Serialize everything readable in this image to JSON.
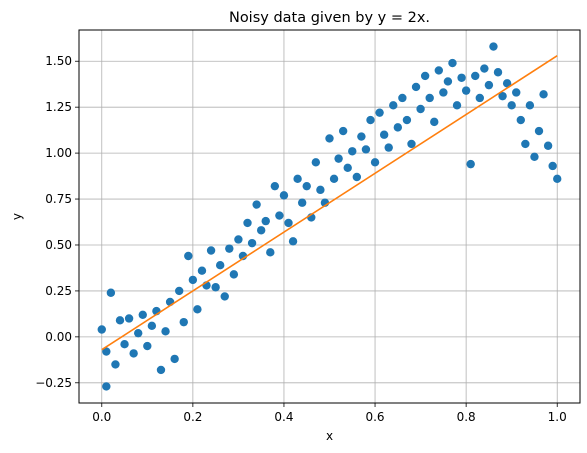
{
  "chart_data": {
    "type": "scatter",
    "title": "Noisy data given by y = 2x.",
    "xlabel": "x",
    "ylabel": "y",
    "xlim": [
      -0.05,
      1.05
    ],
    "ylim": [
      -0.36,
      1.67
    ],
    "xticks": [
      0.0,
      0.2,
      0.4,
      0.6,
      0.8,
      1.0
    ],
    "xtick_labels": [
      "0.0",
      "0.2",
      "0.4",
      "0.6",
      "0.8",
      "1.0"
    ],
    "yticks": [
      -0.25,
      0.0,
      0.25,
      0.5,
      0.75,
      1.0,
      1.25,
      1.5
    ],
    "ytick_labels": [
      "−0.25",
      "0.00",
      "0.25",
      "0.50",
      "0.75",
      "1.00",
      "1.25",
      "1.50"
    ],
    "grid": true,
    "colors": {
      "scatter": "#1f77b4",
      "fit": "#ff7f0e",
      "grid": "#b0b0b0"
    },
    "series": [
      {
        "type": "scatter",
        "points": [
          [
            0.0,
            0.04
          ],
          [
            0.01,
            -0.08
          ],
          [
            0.02,
            0.24
          ],
          [
            0.01,
            -0.27
          ],
          [
            0.03,
            -0.15
          ],
          [
            0.04,
            0.09
          ],
          [
            0.05,
            -0.04
          ],
          [
            0.06,
            0.1
          ],
          [
            0.07,
            -0.09
          ],
          [
            0.08,
            0.02
          ],
          [
            0.09,
            0.12
          ],
          [
            0.1,
            -0.05
          ],
          [
            0.11,
            0.06
          ],
          [
            0.12,
            0.14
          ],
          [
            0.13,
            -0.18
          ],
          [
            0.14,
            0.03
          ],
          [
            0.15,
            0.19
          ],
          [
            0.16,
            -0.12
          ],
          [
            0.17,
            0.25
          ],
          [
            0.18,
            0.08
          ],
          [
            0.19,
            0.44
          ],
          [
            0.2,
            0.31
          ],
          [
            0.21,
            0.15
          ],
          [
            0.22,
            0.36
          ],
          [
            0.23,
            0.28
          ],
          [
            0.24,
            0.47
          ],
          [
            0.25,
            0.27
          ],
          [
            0.26,
            0.39
          ],
          [
            0.27,
            0.22
          ],
          [
            0.28,
            0.48
          ],
          [
            0.29,
            0.34
          ],
          [
            0.3,
            0.53
          ],
          [
            0.31,
            0.44
          ],
          [
            0.32,
            0.62
          ],
          [
            0.33,
            0.51
          ],
          [
            0.34,
            0.72
          ],
          [
            0.35,
            0.58
          ],
          [
            0.36,
            0.63
          ],
          [
            0.37,
            0.46
          ],
          [
            0.38,
            0.82
          ],
          [
            0.39,
            0.66
          ],
          [
            0.4,
            0.77
          ],
          [
            0.41,
            0.62
          ],
          [
            0.42,
            0.52
          ],
          [
            0.43,
            0.86
          ],
          [
            0.44,
            0.73
          ],
          [
            0.45,
            0.82
          ],
          [
            0.46,
            0.65
          ],
          [
            0.47,
            0.95
          ],
          [
            0.48,
            0.8
          ],
          [
            0.49,
            0.73
          ],
          [
            0.5,
            1.08
          ],
          [
            0.51,
            0.86
          ],
          [
            0.52,
            0.97
          ],
          [
            0.53,
            1.12
          ],
          [
            0.54,
            0.92
          ],
          [
            0.55,
            1.01
          ],
          [
            0.56,
            0.87
          ],
          [
            0.57,
            1.09
          ],
          [
            0.58,
            1.02
          ],
          [
            0.59,
            1.18
          ],
          [
            0.6,
            0.95
          ],
          [
            0.61,
            1.22
          ],
          [
            0.62,
            1.1
          ],
          [
            0.63,
            1.03
          ],
          [
            0.64,
            1.26
          ],
          [
            0.65,
            1.14
          ],
          [
            0.66,
            1.3
          ],
          [
            0.67,
            1.18
          ],
          [
            0.68,
            1.05
          ],
          [
            0.69,
            1.36
          ],
          [
            0.7,
            1.24
          ],
          [
            0.71,
            1.42
          ],
          [
            0.72,
            1.3
          ],
          [
            0.73,
            1.17
          ],
          [
            0.74,
            1.45
          ],
          [
            0.75,
            1.33
          ],
          [
            0.76,
            1.39
          ],
          [
            0.77,
            1.49
          ],
          [
            0.78,
            1.26
          ],
          [
            0.79,
            1.41
          ],
          [
            0.8,
            1.34
          ],
          [
            0.81,
            0.94
          ],
          [
            0.82,
            1.42
          ],
          [
            0.83,
            1.3
          ],
          [
            0.84,
            1.46
          ],
          [
            0.85,
            1.37
          ],
          [
            0.86,
            1.58
          ],
          [
            0.87,
            1.44
          ],
          [
            0.88,
            1.31
          ],
          [
            0.89,
            1.38
          ],
          [
            0.9,
            1.26
          ],
          [
            0.91,
            1.33
          ],
          [
            0.92,
            1.18
          ],
          [
            0.93,
            1.05
          ],
          [
            0.94,
            1.26
          ],
          [
            0.95,
            0.98
          ],
          [
            0.96,
            1.12
          ],
          [
            0.97,
            1.32
          ],
          [
            0.98,
            1.04
          ],
          [
            0.99,
            0.93
          ],
          [
            1.0,
            0.86
          ]
        ]
      },
      {
        "type": "line",
        "x": [
          0.0,
          1.0
        ],
        "y": [
          -0.07,
          1.53
        ]
      }
    ]
  }
}
